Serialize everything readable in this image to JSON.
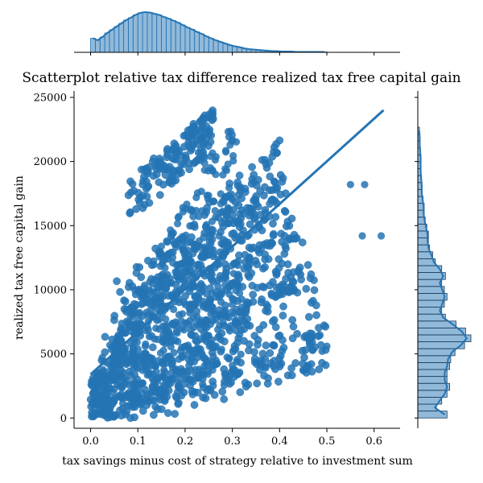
{
  "chart_data": {
    "type": "scatter",
    "title": "Scatterplot relative tax difference realized tax free capital gain",
    "xlabel": "tax savings minus cost of strategy relative to investment sum",
    "ylabel": "realized tax free capital gain",
    "xlim": [
      -0.035,
      0.655
    ],
    "ylim": [
      -800,
      25500
    ],
    "xticks": [
      0.0,
      0.1,
      0.2,
      0.3,
      0.4,
      0.5,
      0.6
    ],
    "xtick_labels": [
      "0.0",
      "0.1",
      "0.2",
      "0.3",
      "0.4",
      "0.5",
      "0.6"
    ],
    "yticks": [
      0,
      5000,
      10000,
      15000,
      20000,
      25000
    ],
    "ytick_labels": [
      "0",
      "5000",
      "10000",
      "15000",
      "20000",
      "25000"
    ],
    "grid": false,
    "color": "#2474b4",
    "regression_line": {
      "x": [
        0.0,
        0.62
      ],
      "y": [
        3400,
        24000
      ]
    },
    "bands": [
      {
        "x": [
          0.0,
          0.5
        ],
        "y_start": 0,
        "y_end": 5600
      },
      {
        "x": [
          0.0,
          0.48
        ],
        "y_start": 1200,
        "y_end": 10200
      },
      {
        "x": [
          0.02,
          0.45
        ],
        "y_start": 2500,
        "y_end": 13500
      },
      {
        "x": [
          0.03,
          0.42
        ],
        "y_start": 5000,
        "y_end": 16800
      },
      {
        "x": [
          0.05,
          0.4
        ],
        "y_start": 8000,
        "y_end": 19000
      },
      {
        "x": [
          0.08,
          0.26
        ],
        "y_start": 17000,
        "y_end": 22600
      }
    ],
    "outliers": [
      {
        "x": 0.55,
        "y": 18200
      },
      {
        "x": 0.58,
        "y": 18200
      },
      {
        "x": 0.575,
        "y": 14200
      },
      {
        "x": 0.615,
        "y": 14200
      },
      {
        "x": 0.5,
        "y": 5600
      },
      {
        "x": 0.49,
        "y": 5200
      },
      {
        "x": 0.4,
        "y": 4200
      },
      {
        "x": 0.3,
        "y": 4100
      }
    ],
    "marginal_x": {
      "type": "histogram",
      "bins_start": 0.0,
      "bin_width": 0.01,
      "counts": [
        0.35,
        0.3,
        0.38,
        0.48,
        0.56,
        0.64,
        0.72,
        0.8,
        0.86,
        0.93,
        0.98,
        1.0,
        0.99,
        0.96,
        0.93,
        0.88,
        0.84,
        0.79,
        0.74,
        0.68,
        0.62,
        0.57,
        0.51,
        0.46,
        0.4,
        0.35,
        0.3,
        0.26,
        0.22,
        0.18,
        0.15,
        0.13,
        0.1,
        0.08,
        0.07,
        0.06,
        0.05,
        0.04,
        0.03,
        0.03,
        0.02,
        0.02,
        0.02,
        0.01,
        0.01,
        0.01,
        0.01,
        0.01,
        0.01,
        0.01
      ]
    },
    "marginal_y": {
      "type": "histogram",
      "bins_start": 0,
      "bin_width": 540,
      "counts": [
        0.55,
        0.35,
        0.45,
        0.55,
        0.6,
        0.55,
        0.55,
        0.6,
        0.62,
        0.7,
        0.88,
        1.0,
        0.9,
        0.72,
        0.52,
        0.45,
        0.5,
        0.55,
        0.5,
        0.45,
        0.52,
        0.45,
        0.33,
        0.28,
        0.22,
        0.2,
        0.2,
        0.17,
        0.14,
        0.12,
        0.12,
        0.1,
        0.08,
        0.08,
        0.07,
        0.06,
        0.06,
        0.06,
        0.05,
        0.04,
        0.04,
        0.03
      ]
    }
  }
}
